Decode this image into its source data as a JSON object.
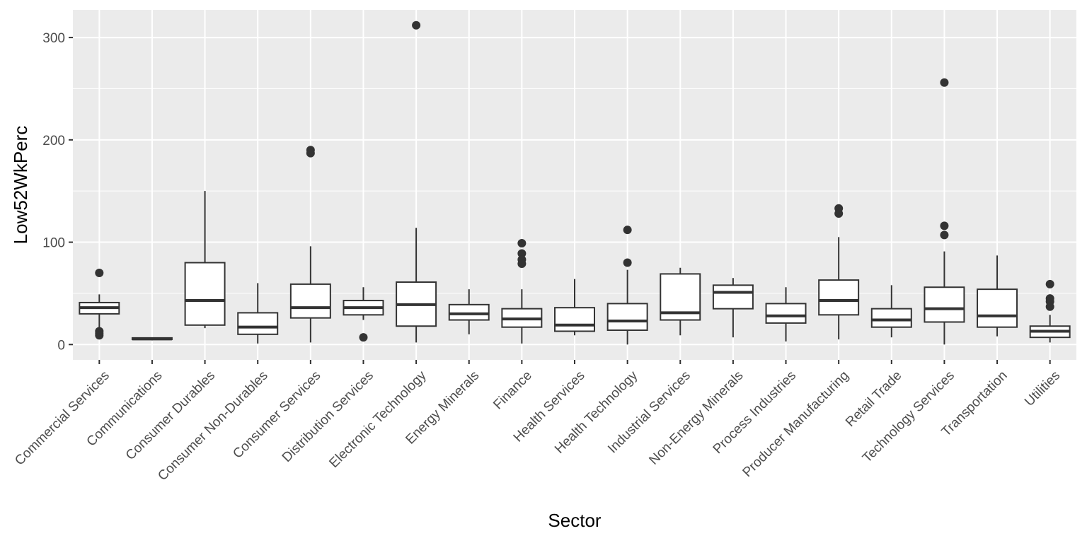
{
  "chart_data": {
    "type": "boxplot",
    "title": "",
    "xlabel": "Sector",
    "ylabel": "Low52WkPerc",
    "ylim": [
      -15,
      327
    ],
    "yticks": [
      0,
      100,
      200,
      300
    ],
    "grid": true,
    "legend": "none",
    "colors": {
      "panel": "#ebebeb",
      "grid_major": "#ffffff",
      "box_fill": "#ffffff",
      "box_stroke": "#333333",
      "outlier": "#333333",
      "tick_text": "#4d4d4d",
      "title_text": "#000000"
    },
    "categories": [
      "Commercial Services",
      "Communications",
      "Consumer Durables",
      "Consumer Non-Durables",
      "Consumer Services",
      "Distribution Services",
      "Electronic Technology",
      "Energy Minerals",
      "Finance",
      "Health Services",
      "Health Technology",
      "Industrial Services",
      "Non-Energy Minerals",
      "Process Industries",
      "Producer Manufacturing",
      "Retail Trade",
      "Technology Services",
      "Transportation",
      "Utilities"
    ],
    "boxes": [
      {
        "whisker_low": 14,
        "q1": 30,
        "median": 36,
        "q3": 41,
        "whisker_high": 49,
        "outliers": [
          70,
          13,
          11,
          9
        ]
      },
      {
        "whisker_low": 4,
        "q1": 5,
        "median": 5.5,
        "q3": 6.5,
        "whisker_high": 7,
        "outliers": []
      },
      {
        "whisker_low": 16,
        "q1": 19,
        "median": 43,
        "q3": 80,
        "whisker_high": 150,
        "outliers": []
      },
      {
        "whisker_low": 1,
        "q1": 10,
        "median": 17,
        "q3": 31,
        "whisker_high": 60,
        "outliers": []
      },
      {
        "whisker_low": 2,
        "q1": 26,
        "median": 36,
        "q3": 59,
        "whisker_high": 96,
        "outliers": [
          190,
          187
        ]
      },
      {
        "whisker_low": 24,
        "q1": 29,
        "median": 36,
        "q3": 43,
        "whisker_high": 56,
        "outliers": [
          7
        ]
      },
      {
        "whisker_low": 2,
        "q1": 18,
        "median": 39,
        "q3": 61,
        "whisker_high": 114,
        "outliers": [
          312
        ]
      },
      {
        "whisker_low": 10,
        "q1": 24,
        "median": 30,
        "q3": 39,
        "whisker_high": 54,
        "outliers": []
      },
      {
        "whisker_low": 1,
        "q1": 17,
        "median": 25,
        "q3": 35,
        "whisker_high": 54,
        "outliers": [
          99,
          89,
          83,
          79
        ]
      },
      {
        "whisker_low": 9,
        "q1": 13,
        "median": 19,
        "q3": 36,
        "whisker_high": 64,
        "outliers": []
      },
      {
        "whisker_low": 0,
        "q1": 14,
        "median": 23,
        "q3": 40,
        "whisker_high": 73,
        "outliers": [
          112,
          80
        ]
      },
      {
        "whisker_low": 9,
        "q1": 24,
        "median": 31,
        "q3": 69,
        "whisker_high": 75,
        "outliers": []
      },
      {
        "whisker_low": 7,
        "q1": 35,
        "median": 51,
        "q3": 58,
        "whisker_high": 65,
        "outliers": []
      },
      {
        "whisker_low": 3,
        "q1": 21,
        "median": 28,
        "q3": 40,
        "whisker_high": 56,
        "outliers": []
      },
      {
        "whisker_low": 5,
        "q1": 29,
        "median": 43,
        "q3": 63,
        "whisker_high": 105,
        "outliers": [
          133,
          128
        ]
      },
      {
        "whisker_low": 7,
        "q1": 17,
        "median": 24,
        "q3": 35,
        "whisker_high": 58,
        "outliers": []
      },
      {
        "whisker_low": 0,
        "q1": 22,
        "median": 35,
        "q3": 56,
        "whisker_high": 91,
        "outliers": [
          256,
          116,
          107
        ]
      },
      {
        "whisker_low": 8,
        "q1": 17,
        "median": 28,
        "q3": 54,
        "whisker_high": 87,
        "outliers": []
      },
      {
        "whisker_low": 2,
        "q1": 7,
        "median": 13,
        "q3": 18,
        "whisker_high": 29,
        "outliers": [
          59,
          45,
          42,
          37
        ]
      }
    ]
  }
}
